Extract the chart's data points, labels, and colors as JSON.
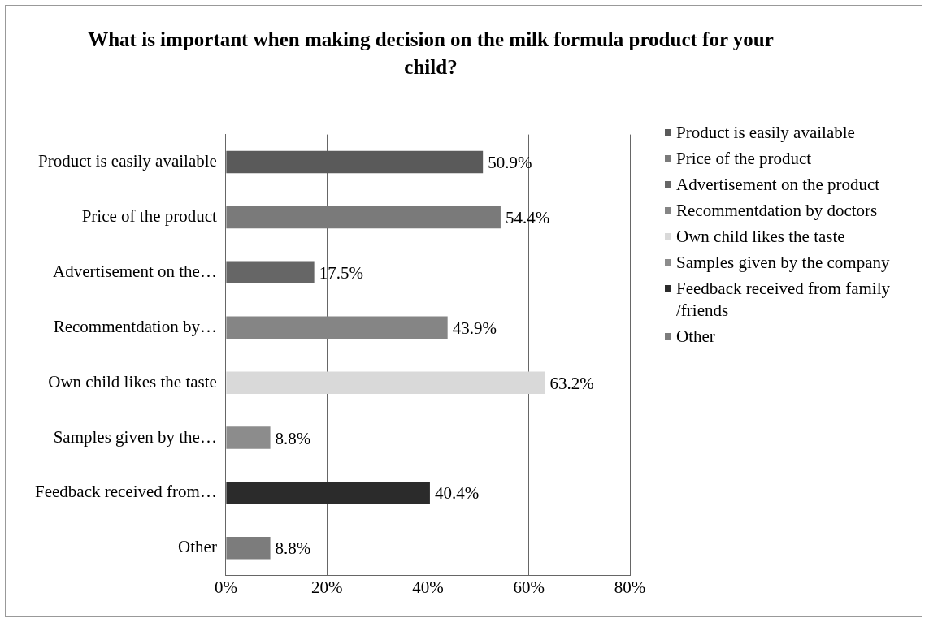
{
  "chart_data": {
    "type": "bar",
    "orientation": "horizontal",
    "stacked": true,
    "title": "What is important when making decision on the milk formula product for your child?",
    "categories": [
      "Product is easily available",
      "Price of the product",
      "Advertisement on the…",
      "Recommentdation by…",
      "Own child likes the taste",
      "Samples given by the…",
      "Feedback received from…",
      "Other"
    ],
    "series": [
      {
        "name": "Product is easily available",
        "color": "#5a5a5a",
        "values": [
          50.9,
          null,
          null,
          null,
          null,
          null,
          null,
          null
        ],
        "value_labels": [
          "50.9%",
          null,
          null,
          null,
          null,
          null,
          null,
          null
        ]
      },
      {
        "name": "Price of the product",
        "color": "#7a7a7a",
        "values": [
          null,
          54.4,
          null,
          null,
          null,
          null,
          null,
          null
        ],
        "value_labels": [
          null,
          "54.4%",
          null,
          null,
          null,
          null,
          null,
          null
        ]
      },
      {
        "name": "Advertisement on the product",
        "color": "#666666",
        "values": [
          null,
          null,
          17.5,
          null,
          null,
          null,
          null,
          null
        ],
        "value_labels": [
          null,
          null,
          "17.5%",
          null,
          null,
          null,
          null,
          null
        ]
      },
      {
        "name": "Recommentdation by doctors",
        "color": "#858585",
        "values": [
          null,
          null,
          null,
          43.9,
          null,
          null,
          null,
          null
        ],
        "value_labels": [
          null,
          null,
          null,
          "43.9%",
          null,
          null,
          null,
          null
        ]
      },
      {
        "name": "Own child likes the taste",
        "color": "#d9d9d9",
        "values": [
          null,
          null,
          null,
          null,
          63.2,
          null,
          null,
          null
        ],
        "value_labels": [
          null,
          null,
          null,
          null,
          "63.2%",
          null,
          null,
          null
        ]
      },
      {
        "name": "Samples given by the company",
        "color": "#8c8c8c",
        "values": [
          null,
          null,
          null,
          null,
          null,
          8.8,
          null,
          null
        ],
        "value_labels": [
          null,
          null,
          null,
          null,
          null,
          "8.8%",
          null,
          null
        ]
      },
      {
        "name": "Feedback received from family /friends",
        "color": "#2b2b2b",
        "values": [
          null,
          null,
          null,
          null,
          null,
          null,
          40.4,
          null
        ],
        "value_labels": [
          null,
          null,
          null,
          null,
          null,
          null,
          "40.4%",
          null
        ]
      },
      {
        "name": "Other",
        "color": "#7c7c7c",
        "values": [
          null,
          null,
          null,
          null,
          null,
          null,
          null,
          8.8
        ],
        "value_labels": [
          null,
          null,
          null,
          null,
          null,
          null,
          null,
          "8.8%"
        ]
      }
    ],
    "xlim": [
      0,
      80
    ],
    "xticks": [
      {
        "value": 0,
        "label": "0%"
      },
      {
        "value": 20,
        "label": "20%"
      },
      {
        "value": 40,
        "label": "40%"
      },
      {
        "value": 60,
        "label": "60%"
      },
      {
        "value": 80,
        "label": "80%"
      }
    ],
    "grid": "x",
    "legend": "right"
  }
}
